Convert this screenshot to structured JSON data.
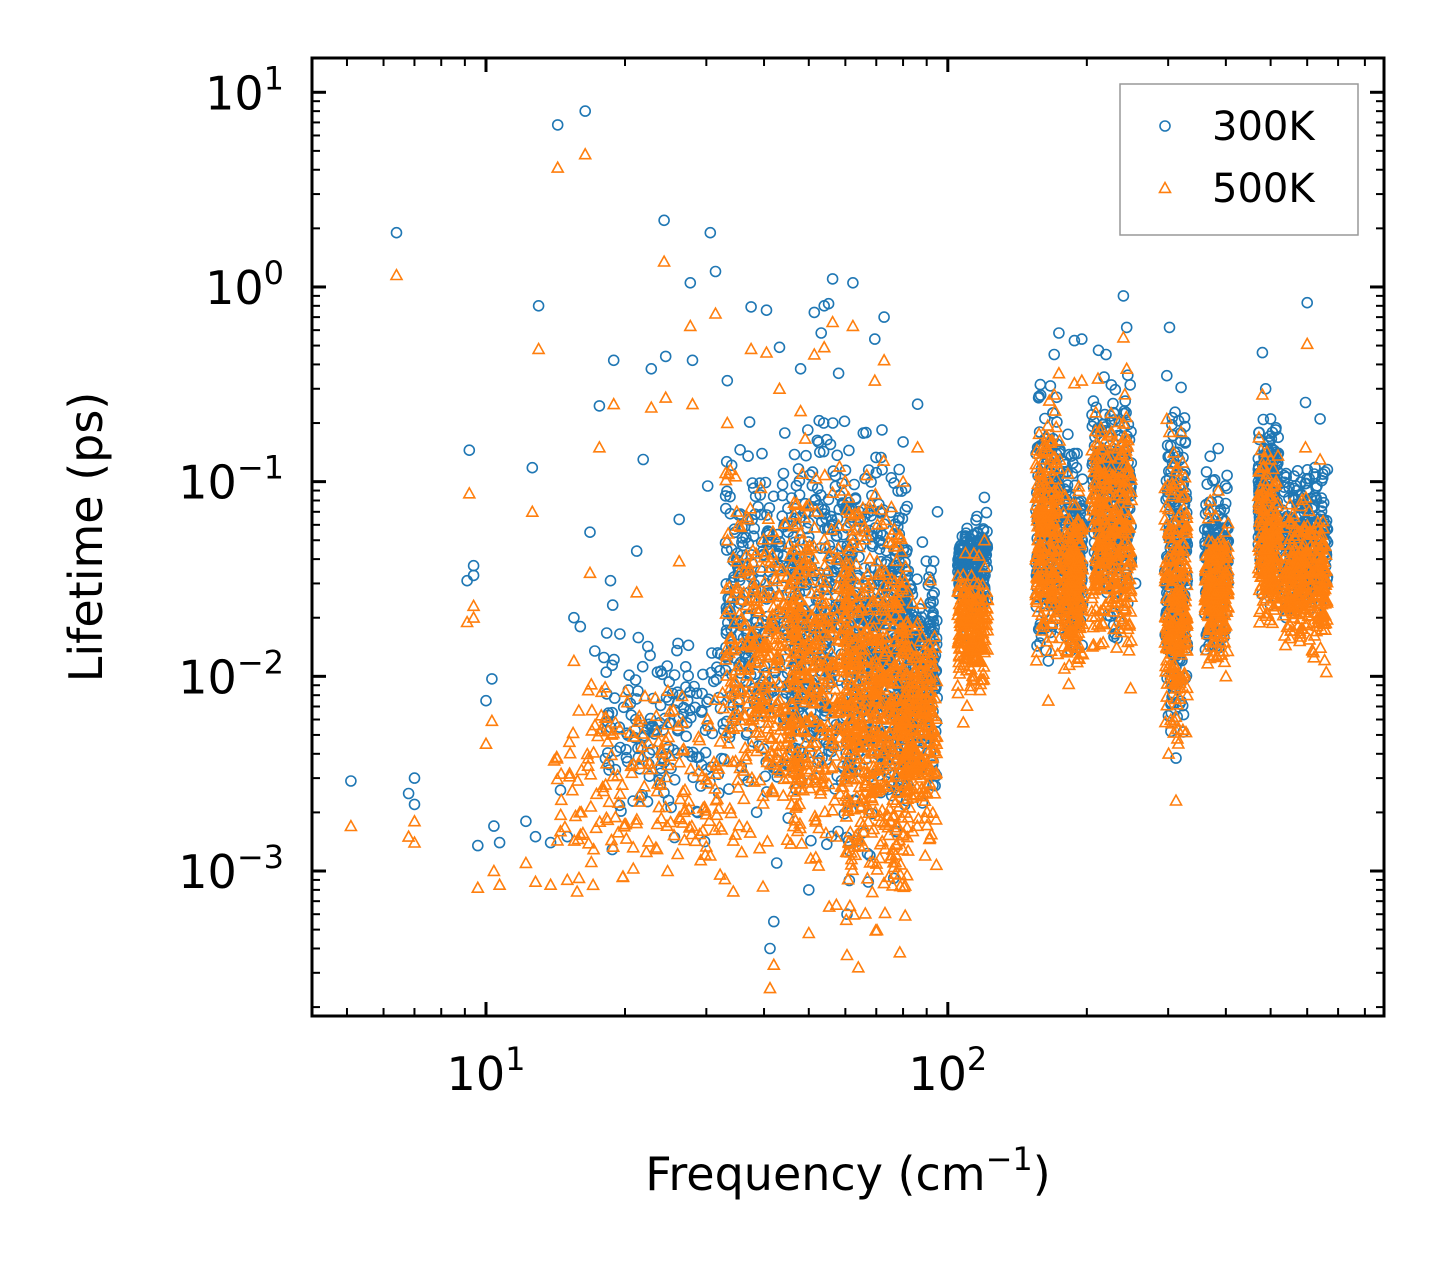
{
  "chart_data": {
    "type": "scatter",
    "xscale": "log",
    "yscale": "log",
    "xlabel": "Frequency (cm",
    "xlabel_sup": "−1",
    "xlabel_end": ")",
    "ylabel": "Lifetime (ps)",
    "xlim": [
      4.2,
      880
    ],
    "ylim": [
      0.00018,
      15
    ],
    "x_ticks": [
      {
        "value": 10,
        "base": "10",
        "exp": "1"
      },
      {
        "value": 100,
        "base": "10",
        "exp": "2"
      }
    ],
    "y_ticks": [
      {
        "value": 10,
        "base": "10",
        "exp": "1"
      },
      {
        "value": 1,
        "base": "10",
        "exp": "0"
      },
      {
        "value": 0.1,
        "base": "10",
        "exp": "−1"
      },
      {
        "value": 0.01,
        "base": "10",
        "exp": "−2"
      },
      {
        "value": 0.001,
        "base": "10",
        "exp": "−3"
      }
    ],
    "legend_position": "top-right",
    "series": [
      {
        "name": "300K",
        "marker": "circle",
        "color": "#1f77b4",
        "points": [
          [
            5.1,
            0.0029
          ],
          [
            6.4,
            1.9
          ],
          [
            6.8,
            0.0025
          ],
          [
            7.0,
            0.003
          ],
          [
            7.0,
            0.0022
          ],
          [
            9.1,
            0.031
          ],
          [
            9.2,
            0.145
          ],
          [
            9.4,
            0.033
          ],
          [
            9.4,
            0.037
          ],
          [
            9.6,
            0.00135
          ],
          [
            10.0,
            0.0075
          ],
          [
            10.3,
            0.0097
          ],
          [
            10.4,
            0.0017
          ],
          [
            10.7,
            0.0014
          ],
          [
            12.2,
            0.0018
          ],
          [
            12.6,
            0.118
          ],
          [
            12.8,
            0.0015
          ],
          [
            13.0,
            0.8
          ],
          [
            13.8,
            0.0014
          ],
          [
            14.3,
            6.8
          ],
          [
            14.5,
            0.0026
          ],
          [
            15.0,
            0.0015
          ],
          [
            15.5,
            0.02
          ],
          [
            16.0,
            0.018
          ],
          [
            16.4,
            8.0
          ],
          [
            16.8,
            0.055
          ],
          [
            17.2,
            0.0135
          ],
          [
            17.6,
            0.245
          ],
          [
            18.0,
            0.0125
          ],
          [
            18.6,
            0.031
          ],
          [
            18.9,
            0.42
          ],
          [
            19.5,
            0.0165
          ],
          [
            20.1,
            0.0042
          ],
          [
            21.2,
            0.044
          ],
          [
            21.9,
            0.13
          ],
          [
            22.8,
            0.38
          ],
          [
            23.5,
            0.0105
          ],
          [
            24.3,
            2.2
          ],
          [
            24.5,
            0.44
          ],
          [
            26.2,
            0.064
          ],
          [
            27.1,
            0.0088
          ],
          [
            27.7,
            1.05
          ],
          [
            28.0,
            0.42
          ],
          [
            30.2,
            0.095
          ],
          [
            30.6,
            1.9
          ],
          [
            31.4,
            1.2
          ],
          [
            33.3,
            0.33
          ],
          [
            34.5,
            0.057
          ],
          [
            36.0,
            0.047
          ],
          [
            37.5,
            0.79
          ],
          [
            39.2,
            0.0082
          ],
          [
            40.5,
            0.76
          ],
          [
            41.2,
            0.0004
          ],
          [
            42.0,
            0.00055
          ],
          [
            42.6,
            0.0011
          ],
          [
            43.2,
            0.49
          ],
          [
            45.0,
            0.0035
          ],
          [
            46.3,
            0.052
          ],
          [
            48.0,
            0.38
          ],
          [
            50.0,
            0.0008
          ],
          [
            51.4,
            0.74
          ],
          [
            53.2,
            0.58
          ],
          [
            54.0,
            0.8
          ],
          [
            55.2,
            0.82
          ],
          [
            56.3,
            1.1
          ],
          [
            58.0,
            0.36
          ],
          [
            60.5,
            0.0006
          ],
          [
            62.3,
            1.05
          ],
          [
            64.0,
            0.0041
          ],
          [
            66.0,
            0.072
          ],
          [
            67.8,
            0.0012
          ],
          [
            69.5,
            0.54
          ],
          [
            71.0,
            0.0031
          ],
          [
            72.8,
            0.7
          ],
          [
            75.0,
            0.035
          ],
          [
            77.5,
            0.0016
          ],
          [
            80.0,
            0.16
          ],
          [
            83.0,
            0.0085
          ],
          [
            86.0,
            0.25
          ],
          [
            89.0,
            0.0045
          ],
          [
            92.0,
            0.035
          ],
          [
            95.0,
            0.07
          ],
          [
            108.0,
            0.016
          ],
          [
            112.0,
            0.028
          ],
          [
            116.0,
            0.055
          ],
          [
            120.0,
            0.083
          ],
          [
            158.0,
            0.18
          ],
          [
            162.0,
            0.06
          ],
          [
            165.0,
            0.012
          ],
          [
            170.0,
            0.45
          ],
          [
            174.0,
            0.58
          ],
          [
            182.0,
            0.175
          ],
          [
            188.0,
            0.53
          ],
          [
            190.0,
            0.045
          ],
          [
            195.0,
            0.54
          ],
          [
            212.0,
            0.13
          ],
          [
            220.0,
            0.45
          ],
          [
            230.0,
            0.095
          ],
          [
            240.0,
            0.9
          ],
          [
            244.0,
            0.62
          ],
          [
            255.0,
            0.03
          ],
          [
            298.0,
            0.35
          ],
          [
            302.0,
            0.62
          ],
          [
            312.0,
            0.0038
          ],
          [
            320.0,
            0.305
          ],
          [
            330.0,
            0.014
          ],
          [
            370.0,
            0.135
          ],
          [
            385.0,
            0.148
          ],
          [
            400.0,
            0.045
          ],
          [
            480.0,
            0.46
          ],
          [
            488.0,
            0.3
          ],
          [
            500.0,
            0.21
          ],
          [
            540.0,
            0.11
          ],
          [
            560.0,
            0.045
          ],
          [
            595.0,
            0.255
          ],
          [
            600.0,
            0.83
          ],
          [
            640.0,
            0.21
          ],
          [
            660.0,
            0.05
          ]
        ],
        "clusters": [
          {
            "x": [
              18,
              33
            ],
            "y": [
              0.0011,
              0.025
            ],
            "n": 160,
            "seed": 11
          },
          {
            "x": [
              33,
              48
            ],
            "y": [
              0.0012,
              0.3
            ],
            "n": 320,
            "seed": 12
          },
          {
            "x": [
              46,
              62
            ],
            "y": [
              0.0008,
              0.45
            ],
            "n": 320,
            "seed": 13
          },
          {
            "x": [
              60,
              82
            ],
            "y": [
              0.0006,
              0.35
            ],
            "n": 480,
            "seed": 14
          },
          {
            "x": [
              80,
              95
            ],
            "y": [
              0.0015,
              0.07
            ],
            "n": 220,
            "seed": 15
          },
          {
            "x": [
              105,
              122
            ],
            "y": [
              0.016,
              0.085
            ],
            "n": 200,
            "seed": 16
          },
          {
            "x": [
              155,
              175
            ],
            "y": [
              0.008,
              0.48
            ],
            "n": 220,
            "seed": 17
          },
          {
            "x": [
              178,
              196
            ],
            "y": [
              0.01,
              0.18
            ],
            "n": 200,
            "seed": 18
          },
          {
            "x": [
              205,
              250
            ],
            "y": [
              0.01,
              0.65
            ],
            "n": 320,
            "seed": 19
          },
          {
            "x": [
              295,
              330
            ],
            "y": [
              0.003,
              0.4
            ],
            "n": 240,
            "seed": 20
          },
          {
            "x": [
              360,
              405
            ],
            "y": [
              0.01,
              0.14
            ],
            "n": 200,
            "seed": 21
          },
          {
            "x": [
              470,
              520
            ],
            "y": [
              0.02,
              0.3
            ],
            "n": 200,
            "seed": 22
          },
          {
            "x": [
              530,
              665
            ],
            "y": [
              0.015,
              0.16
            ],
            "n": 280,
            "seed": 23
          }
        ]
      },
      {
        "name": "500K",
        "marker": "triangle",
        "color": "#ff7f0e",
        "points": [
          [
            5.1,
            0.0017
          ],
          [
            6.4,
            1.15
          ],
          [
            6.8,
            0.0015
          ],
          [
            7.0,
            0.0018
          ],
          [
            7.0,
            0.0014
          ],
          [
            9.1,
            0.019
          ],
          [
            9.2,
            0.087
          ],
          [
            9.4,
            0.02
          ],
          [
            9.4,
            0.023
          ],
          [
            9.6,
            0.00082
          ],
          [
            10.0,
            0.0045
          ],
          [
            10.3,
            0.0059
          ],
          [
            10.4,
            0.001
          ],
          [
            10.7,
            0.00085
          ],
          [
            12.2,
            0.0011
          ],
          [
            12.6,
            0.07
          ],
          [
            12.8,
            0.00088
          ],
          [
            13.0,
            0.48
          ],
          [
            13.8,
            0.00085
          ],
          [
            14.3,
            4.1
          ],
          [
            14.5,
            0.0016
          ],
          [
            15.0,
            0.0009
          ],
          [
            15.5,
            0.012
          ],
          [
            16.4,
            4.8
          ],
          [
            16.8,
            0.034
          ],
          [
            17.6,
            0.15
          ],
          [
            18.9,
            0.25
          ],
          [
            21.2,
            0.027
          ],
          [
            22.8,
            0.24
          ],
          [
            24.3,
            1.35
          ],
          [
            24.5,
            0.27
          ],
          [
            26.2,
            0.039
          ],
          [
            27.7,
            0.63
          ],
          [
            28.0,
            0.25
          ],
          [
            30.6,
            0.0012
          ],
          [
            31.4,
            0.73
          ],
          [
            33.3,
            0.2
          ],
          [
            37.5,
            0.48
          ],
          [
            40.5,
            0.46
          ],
          [
            41.2,
            0.00025
          ],
          [
            42.0,
            0.00033
          ],
          [
            43.2,
            0.3
          ],
          [
            48.0,
            0.23
          ],
          [
            50.0,
            0.00048
          ],
          [
            51.4,
            0.45
          ],
          [
            54.0,
            0.49
          ],
          [
            56.3,
            0.66
          ],
          [
            60.5,
            0.00037
          ],
          [
            62.3,
            0.63
          ],
          [
            64.0,
            0.00032
          ],
          [
            69.5,
            0.33
          ],
          [
            72.8,
            0.42
          ],
          [
            80.0,
            0.1
          ],
          [
            86.0,
            0.15
          ],
          [
            108.0,
            0.0058
          ],
          [
            112.0,
            0.0085
          ],
          [
            116.0,
            0.022
          ],
          [
            120.0,
            0.05
          ],
          [
            158.0,
            0.11
          ],
          [
            165.0,
            0.0075
          ],
          [
            170.0,
            0.28
          ],
          [
            174.0,
            0.36
          ],
          [
            182.0,
            0.11
          ],
          [
            188.0,
            0.32
          ],
          [
            195.0,
            0.33
          ],
          [
            212.0,
            0.08
          ],
          [
            240.0,
            0.55
          ],
          [
            244.0,
            0.38
          ],
          [
            298.0,
            0.21
          ],
          [
            302.0,
            0.18
          ],
          [
            312.0,
            0.0023
          ],
          [
            320.0,
            0.18
          ],
          [
            330.0,
            0.008
          ],
          [
            370.0,
            0.08
          ],
          [
            385.0,
            0.09
          ],
          [
            400.0,
            0.01
          ],
          [
            480.0,
            0.28
          ],
          [
            500.0,
            0.13
          ],
          [
            540.0,
            0.065
          ],
          [
            560.0,
            0.02
          ],
          [
            595.0,
            0.15
          ],
          [
            600.0,
            0.51
          ],
          [
            640.0,
            0.13
          ],
          [
            660.0,
            0.0105
          ]
        ],
        "clusters": [
          {
            "x": [
              14,
              33
            ],
            "y": [
              0.0006,
              0.015
            ],
            "n": 200,
            "seed": 31
          },
          {
            "x": [
              33,
              48
            ],
            "y": [
              0.0006,
              0.2
            ],
            "n": 360,
            "seed": 32
          },
          {
            "x": [
              46,
              62
            ],
            "y": [
              0.0004,
              0.28
            ],
            "n": 360,
            "seed": 33
          },
          {
            "x": [
              60,
              82
            ],
            "y": [
              0.0003,
              0.2
            ],
            "n": 560,
            "seed": 34
          },
          {
            "x": [
              80,
              95
            ],
            "y": [
              0.0008,
              0.04
            ],
            "n": 260,
            "seed": 35
          },
          {
            "x": [
              105,
              122
            ],
            "y": [
              0.006,
              0.05
            ],
            "n": 220,
            "seed": 36
          },
          {
            "x": [
              155,
              175
            ],
            "y": [
              0.0075,
              0.3
            ],
            "n": 240,
            "seed": 37
          },
          {
            "x": [
              178,
              196
            ],
            "y": [
              0.0075,
              0.11
            ],
            "n": 220,
            "seed": 38
          },
          {
            "x": [
              205,
              250
            ],
            "y": [
              0.007,
              0.4
            ],
            "n": 340,
            "seed": 39
          },
          {
            "x": [
              295,
              330
            ],
            "y": [
              0.0022,
              0.25
            ],
            "n": 260,
            "seed": 40
          },
          {
            "x": [
              360,
              405
            ],
            "y": [
              0.009,
              0.08
            ],
            "n": 220,
            "seed": 41
          },
          {
            "x": [
              470,
              520
            ],
            "y": [
              0.012,
              0.18
            ],
            "n": 220,
            "seed": 42
          },
          {
            "x": [
              530,
              665
            ],
            "y": [
              0.01,
              0.1
            ],
            "n": 300,
            "seed": 43
          }
        ]
      }
    ]
  }
}
